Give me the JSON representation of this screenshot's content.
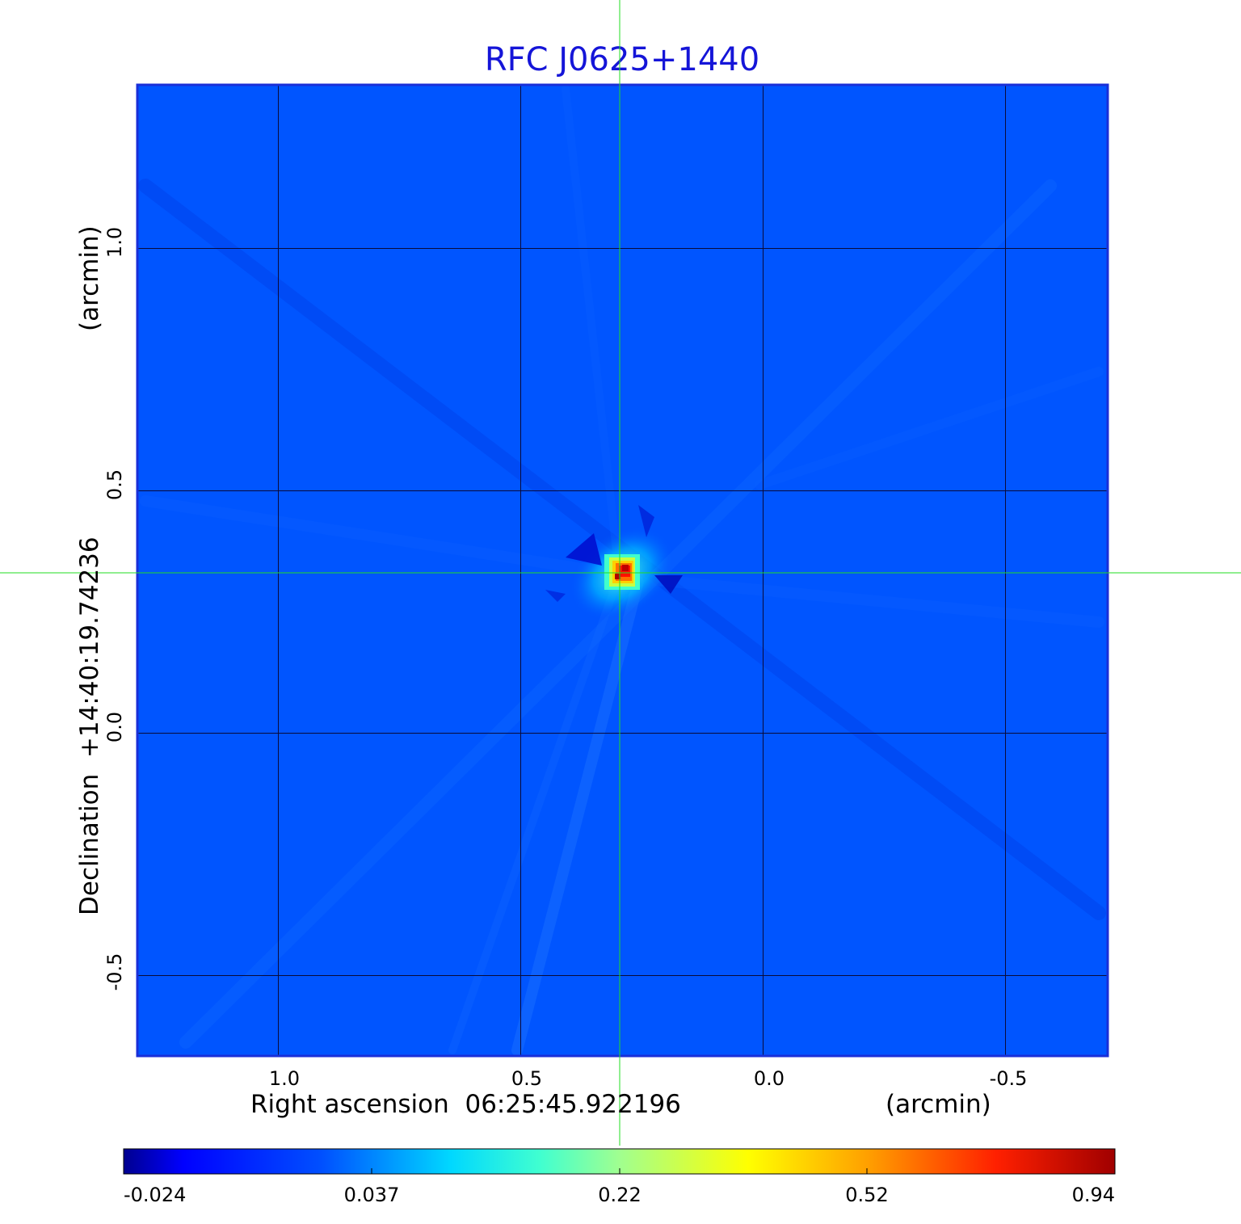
{
  "chart_data": {
    "type": "heatmap",
    "title": "RFC J0625+1440",
    "xlabel": "Right ascension  06:25:45.922196",
    "xlabel_unit": "(arcmin)",
    "ylabel": "Declination  +14:40:19.74236",
    "ylabel_unit": "(arcmin)",
    "x_axis": {
      "direction": "decreasing",
      "ticks": [
        1.0,
        0.5,
        0.0,
        -0.5
      ],
      "tick_labels": [
        "1.0",
        "0.5",
        "0.0",
        "-0.5"
      ],
      "range": [
        1.29,
        -0.71
      ]
    },
    "y_axis": {
      "ticks": [
        1.0,
        0.5,
        0.0,
        -0.5
      ],
      "tick_labels": [
        "1.0",
        "0.5",
        "0.0",
        "-0.5"
      ],
      "range": [
        -0.67,
        1.34
      ]
    },
    "grid": true,
    "crosshair": {
      "x": 0.295,
      "y": 0.33,
      "color": "#22dd22"
    },
    "source_peak": {
      "x": 0.29,
      "y": 0.33,
      "value": 0.94
    },
    "colorbar": {
      "colormap": "jet",
      "tick_labels": [
        "-0.024",
        "0.037",
        "0.22",
        "0.52",
        "0.94"
      ],
      "min": -0.024,
      "max": 0.94
    },
    "background_color": "#0055ff"
  }
}
